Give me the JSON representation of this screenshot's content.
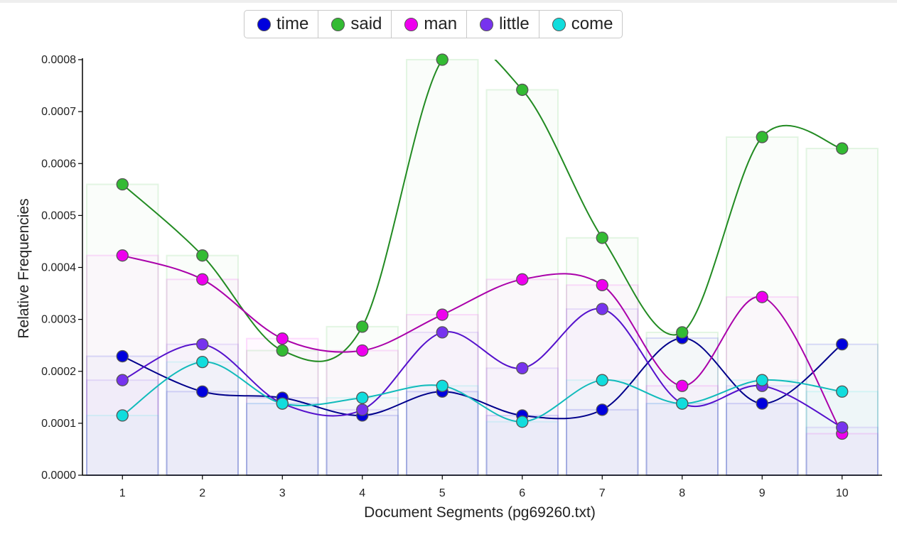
{
  "chart_data": {
    "type": "line",
    "title": "",
    "xlabel": "Document Segments (pg69260.txt)",
    "ylabel": "Relative Frequencies",
    "ylim": [
      0,
      0.0008
    ],
    "y_ticks": [
      "0.0000",
      "0.0001",
      "0.0002",
      "0.0003",
      "0.0004",
      "0.0005",
      "0.0006",
      "0.0007",
      "0.0008"
    ],
    "categories": [
      "1",
      "2",
      "3",
      "4",
      "5",
      "6",
      "7",
      "8",
      "9",
      "10"
    ],
    "legend_position": "top-center",
    "grid": false,
    "bars_behind_points": true,
    "series": [
      {
        "name": "time",
        "color": "#0000dd",
        "line_color": "#00008b",
        "values": [
          0.000229,
          0.000161,
          0.000149,
          0.000115,
          0.000161,
          0.000115,
          0.000126,
          0.000264,
          0.000138,
          0.000252
        ]
      },
      {
        "name": "said",
        "color": "#33bb33",
        "line_color": "#228b22",
        "values": [
          0.00056,
          0.000423,
          0.00024,
          0.000286,
          0.0008,
          0.000742,
          0.000457,
          0.000275,
          0.000651,
          0.000629
        ]
      },
      {
        "name": "man",
        "color": "#ee00ee",
        "line_color": "#aa00aa",
        "values": [
          0.000423,
          0.000377,
          0.000263,
          0.00024,
          0.000309,
          0.000377,
          0.000366,
          0.000172,
          0.000343,
          8e-05
        ]
      },
      {
        "name": "little",
        "color": "#7733ee",
        "line_color": "#5511cc",
        "values": [
          0.000183,
          0.000252,
          0.000138,
          0.000126,
          0.000275,
          0.000206,
          0.00032,
          0.000138,
          0.000172,
          9.2e-05
        ]
      },
      {
        "name": "come",
        "color": "#11dddd",
        "line_color": "#11bbbb",
        "values": [
          0.000115,
          0.000218,
          0.000138,
          0.000149,
          0.000172,
          0.000103,
          0.000183,
          0.000138,
          0.000183,
          0.000161
        ]
      }
    ]
  }
}
